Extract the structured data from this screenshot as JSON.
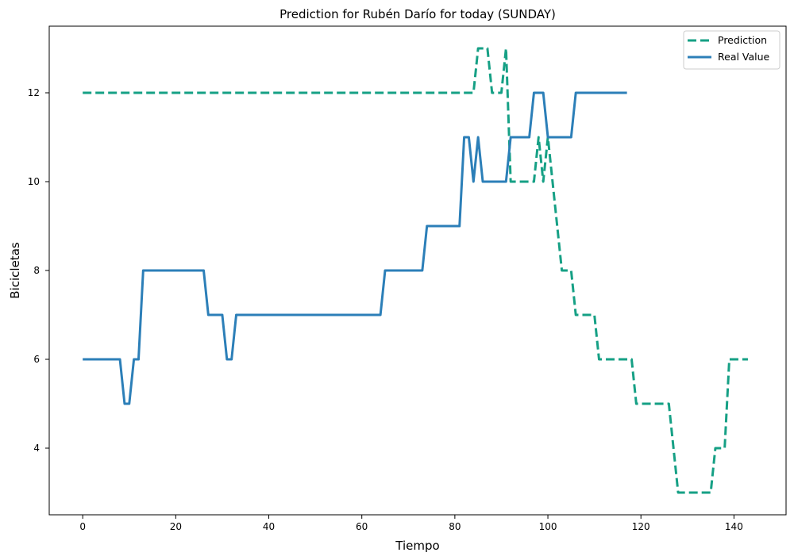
{
  "chart_data": {
    "type": "line",
    "title": "Prediction for Rubén Darío for today (SUNDAY)",
    "xlabel": "Tiempo",
    "ylabel": "Bicicletas",
    "xlim": [
      -7.2,
      151.2
    ],
    "ylim": [
      2.5,
      13.5
    ],
    "xticks": [
      0,
      20,
      40,
      60,
      80,
      100,
      120,
      140
    ],
    "yticks": [
      4,
      6,
      8,
      10,
      12
    ],
    "grid": false,
    "legend_position": "top-right",
    "series": [
      {
        "name": "Prediction",
        "color": "#16a085",
        "style": "dashed",
        "x": [
          0,
          84,
          85,
          87,
          88,
          90,
          91,
          92,
          97,
          98,
          99,
          100,
          101,
          102,
          103,
          105,
          106,
          108,
          109,
          110,
          111,
          117,
          118,
          119,
          125,
          126,
          127,
          128,
          135,
          136,
          138,
          139,
          140,
          143
        ],
        "y": [
          12,
          12,
          13,
          13,
          12,
          12,
          13,
          10,
          10,
          11,
          10,
          11,
          10,
          9,
          8,
          8,
          7,
          7,
          7,
          7,
          6,
          6,
          6,
          5,
          5,
          5,
          4,
          3,
          3,
          4,
          4,
          6,
          6,
          6
        ]
      },
      {
        "name": "Real Value",
        "color": "#2c7fb8",
        "style": "solid",
        "x": [
          0,
          8,
          9,
          10,
          11,
          12,
          13,
          26,
          27,
          30,
          31,
          32,
          33,
          64,
          65,
          73,
          74,
          81,
          82,
          83,
          84,
          85,
          86,
          91,
          92,
          96,
          97,
          99,
          100,
          105,
          106,
          117
        ],
        "y": [
          6,
          6,
          5,
          5,
          6,
          6,
          8,
          8,
          7,
          7,
          6,
          6,
          7,
          7,
          8,
          8,
          9,
          9,
          11,
          11,
          10,
          11,
          10,
          10,
          11,
          11,
          12,
          12,
          11,
          11,
          12,
          12
        ]
      }
    ]
  }
}
